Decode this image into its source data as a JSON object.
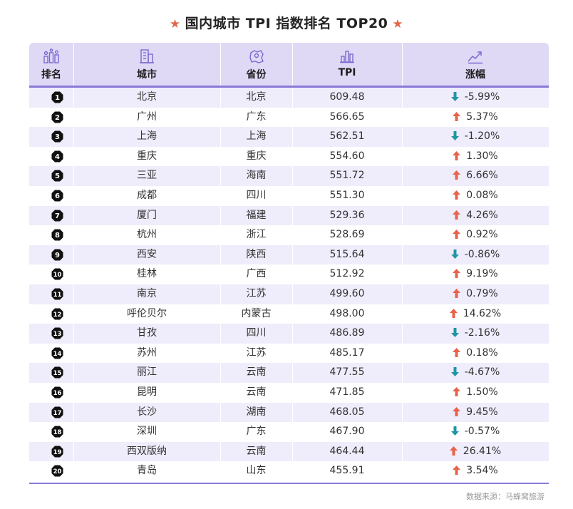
{
  "title": "国内城市 TPI 指数排名 TOP20",
  "columns": {
    "rank": "排名",
    "city": "城市",
    "province": "省份",
    "tpi": "TPI",
    "change": "涨幅"
  },
  "icons": {
    "rank": "ranking-bars-icon",
    "city": "building-icon",
    "province": "map-region-icon",
    "tpi": "chart-bars-icon",
    "change": "trend-up-icon"
  },
  "colors": {
    "up": "#e8634a",
    "down": "#1f95a6",
    "header_bg": "#dfd9f6",
    "row_alt": "#efecfb",
    "accent": "#8a78d8"
  },
  "source": "数据来源：马蜂窝旅游",
  "chart_data": {
    "type": "table",
    "title": "国内城市 TPI 指数排名 TOP20",
    "columns": [
      "排名",
      "城市",
      "省份",
      "TPI",
      "涨幅"
    ],
    "rows": [
      {
        "rank": "1",
        "city": "北京",
        "province": "北京",
        "tpi": "609.48",
        "change": "-5.99%",
        "dir": "down"
      },
      {
        "rank": "2",
        "city": "广州",
        "province": "广东",
        "tpi": "566.65",
        "change": "5.37%",
        "dir": "up"
      },
      {
        "rank": "3",
        "city": "上海",
        "province": "上海",
        "tpi": "562.51",
        "change": "-1.20%",
        "dir": "down"
      },
      {
        "rank": "4",
        "city": "重庆",
        "province": "重庆",
        "tpi": "554.60",
        "change": "1.30%",
        "dir": "up"
      },
      {
        "rank": "5",
        "city": "三亚",
        "province": "海南",
        "tpi": "551.72",
        "change": "6.66%",
        "dir": "up"
      },
      {
        "rank": "6",
        "city": "成都",
        "province": "四川",
        "tpi": "551.30",
        "change": "0.08%",
        "dir": "up"
      },
      {
        "rank": "7",
        "city": "厦门",
        "province": "福建",
        "tpi": "529.36",
        "change": "4.26%",
        "dir": "up"
      },
      {
        "rank": "8",
        "city": "杭州",
        "province": "浙江",
        "tpi": "528.69",
        "change": "0.92%",
        "dir": "up"
      },
      {
        "rank": "9",
        "city": "西安",
        "province": "陕西",
        "tpi": "515.64",
        "change": "-0.86%",
        "dir": "down"
      },
      {
        "rank": "10",
        "city": "桂林",
        "province": "广西",
        "tpi": "512.92",
        "change": "9.19%",
        "dir": "up"
      },
      {
        "rank": "11",
        "city": "南京",
        "province": "江苏",
        "tpi": "499.60",
        "change": "0.79%",
        "dir": "up"
      },
      {
        "rank": "12",
        "city": "呼伦贝尔",
        "province": "内蒙古",
        "tpi": "498.00",
        "change": "14.62%",
        "dir": "up"
      },
      {
        "rank": "13",
        "city": "甘孜",
        "province": "四川",
        "tpi": "486.89",
        "change": "-2.16%",
        "dir": "down"
      },
      {
        "rank": "14",
        "city": "苏州",
        "province": "江苏",
        "tpi": "485.17",
        "change": "0.18%",
        "dir": "up"
      },
      {
        "rank": "15",
        "city": "丽江",
        "province": "云南",
        "tpi": "477.55",
        "change": "-4.67%",
        "dir": "down"
      },
      {
        "rank": "16",
        "city": "昆明",
        "province": "云南",
        "tpi": "471.85",
        "change": "1.50%",
        "dir": "up"
      },
      {
        "rank": "17",
        "city": "长沙",
        "province": "湖南",
        "tpi": "468.05",
        "change": "9.45%",
        "dir": "up"
      },
      {
        "rank": "18",
        "city": "深圳",
        "province": "广东",
        "tpi": "467.90",
        "change": "-0.57%",
        "dir": "down"
      },
      {
        "rank": "19",
        "city": "西双版纳",
        "province": "云南",
        "tpi": "464.44",
        "change": "26.41%",
        "dir": "up"
      },
      {
        "rank": "20",
        "city": "青岛",
        "province": "山东",
        "tpi": "455.91",
        "change": "3.54%",
        "dir": "up"
      }
    ]
  }
}
